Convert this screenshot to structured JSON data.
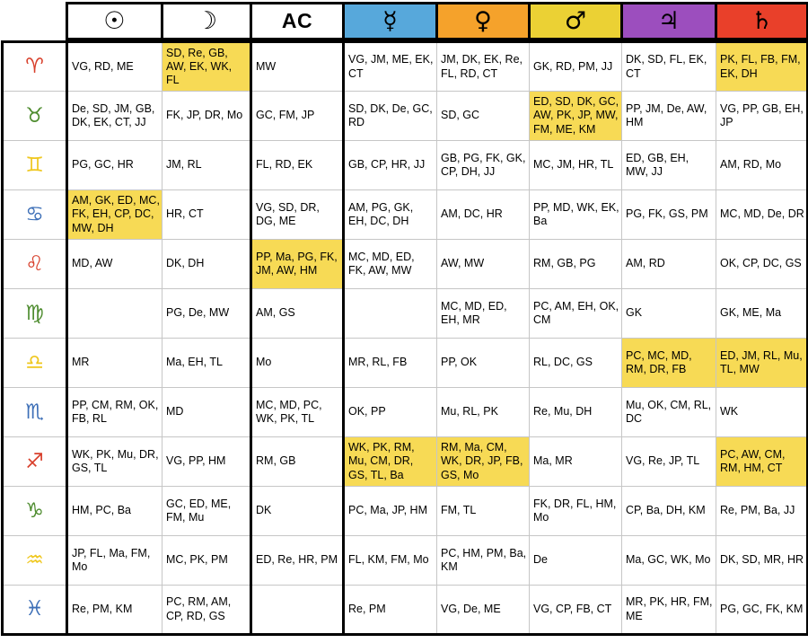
{
  "table": {
    "corner_label": "",
    "highlight_color": "#F7DA55",
    "element_colors": {
      "fire": "#D8402C",
      "earth": "#4E8C2F",
      "air": "#EFC71E",
      "water": "#3D6FB7"
    },
    "columns": [
      {
        "name": "sun",
        "label": "☉",
        "bg": "#ffffff",
        "text_header": false
      },
      {
        "name": "moon",
        "label": "☽",
        "bg": "#ffffff",
        "text_header": false
      },
      {
        "name": "ascendant",
        "label": "AC",
        "bg": "#ffffff",
        "text_header": true
      },
      {
        "name": "mercury",
        "label": "☿",
        "bg": "#57A8DB",
        "text_header": false
      },
      {
        "name": "venus",
        "label": "♀",
        "bg": "#F5A22B",
        "text_header": false
      },
      {
        "name": "mars",
        "label": "♂",
        "bg": "#EBD134",
        "text_header": false
      },
      {
        "name": "jupiter",
        "label": "♃",
        "bg": "#9C4EBE",
        "text_header": false
      },
      {
        "name": "saturn",
        "label": "♄",
        "bg": "#E9402A",
        "text_header": false
      }
    ],
    "rows": [
      {
        "sign": "aries",
        "symbol": "♈",
        "element": "fire",
        "cells": [
          {
            "text": "VG, RD, ME",
            "highlight": false
          },
          {
            "text": "SD, Re, GB, AW, EK, WK, FL",
            "highlight": true
          },
          {
            "text": "MW",
            "highlight": false
          },
          {
            "text": "VG, JM, ME, EK, CT",
            "highlight": false
          },
          {
            "text": "JM, DK, EK, Re, FL, RD, CT",
            "highlight": false
          },
          {
            "text": "GK, RD, PM, JJ",
            "highlight": false
          },
          {
            "text": "DK, SD, FL, EK, CT",
            "highlight": false
          },
          {
            "text": "PK, FL, FB, FM, EK, DH",
            "highlight": true
          }
        ]
      },
      {
        "sign": "taurus",
        "symbol": "♉",
        "element": "earth",
        "cells": [
          {
            "text": "De, SD, JM, GB, DK, EK, CT, JJ",
            "highlight": false
          },
          {
            "text": "FK, JP, DR, Mo",
            "highlight": false
          },
          {
            "text": "GC, FM, JP",
            "highlight": false
          },
          {
            "text": "SD, DK, De, GC, RD",
            "highlight": false
          },
          {
            "text": "SD, GC",
            "highlight": false
          },
          {
            "text": "ED, SD, DK, GC, AW, PK, JP, MW, FM, ME, KM",
            "highlight": true
          },
          {
            "text": "PP, JM, De, AW, HM",
            "highlight": false
          },
          {
            "text": "VG, PP, GB, EH, JP",
            "highlight": false
          }
        ]
      },
      {
        "sign": "gemini",
        "symbol": "♊",
        "element": "air",
        "cells": [
          {
            "text": "PG, GC, HR",
            "highlight": false
          },
          {
            "text": "JM, RL",
            "highlight": false
          },
          {
            "text": "FL, RD, EK",
            "highlight": false
          },
          {
            "text": "GB, CP, HR, JJ",
            "highlight": false
          },
          {
            "text": "GB, PG, FK, GK, CP, DH, JJ",
            "highlight": false
          },
          {
            "text": "MC, JM, HR, TL",
            "highlight": false
          },
          {
            "text": "ED, GB, EH, MW, JJ",
            "highlight": false
          },
          {
            "text": "AM, RD, Mo",
            "highlight": false
          }
        ]
      },
      {
        "sign": "cancer",
        "symbol": "♋",
        "element": "water",
        "cells": [
          {
            "text": "AM, GK, ED, MC, FK, EH, CP, DC, MW, DH",
            "highlight": true
          },
          {
            "text": "HR, CT",
            "highlight": false
          },
          {
            "text": "VG, SD, DR, DG, ME",
            "highlight": false
          },
          {
            "text": "AM, PG, GK, EH, DC, DH",
            "highlight": false
          },
          {
            "text": "AM, DC, HR",
            "highlight": false
          },
          {
            "text": "PP, MD, WK, EK, Ba",
            "highlight": false
          },
          {
            "text": "PG, FK, GS, PM",
            "highlight": false
          },
          {
            "text": "MC, MD, De, DR",
            "highlight": false
          }
        ]
      },
      {
        "sign": "leo",
        "symbol": "♌",
        "element": "fire",
        "cells": [
          {
            "text": "MD, AW",
            "highlight": false
          },
          {
            "text": "DK, DH",
            "highlight": false
          },
          {
            "text": "PP, Ma, PG, FK, JM, AW, HM",
            "highlight": true
          },
          {
            "text": "MC, MD, ED, FK, AW, MW",
            "highlight": false
          },
          {
            "text": "AW, MW",
            "highlight": false
          },
          {
            "text": "RM, GB, PG",
            "highlight": false
          },
          {
            "text": "AM, RD",
            "highlight": false
          },
          {
            "text": "OK, CP, DC, GS",
            "highlight": false
          }
        ]
      },
      {
        "sign": "virgo",
        "symbol": "♍",
        "element": "earth",
        "cells": [
          {
            "text": "",
            "highlight": false
          },
          {
            "text": "PG, De, MW",
            "highlight": false
          },
          {
            "text": "AM, GS",
            "highlight": false
          },
          {
            "text": "",
            "highlight": false
          },
          {
            "text": "MC, MD, ED, EH, MR",
            "highlight": false
          },
          {
            "text": "PC, AM, EH, OK, CM",
            "highlight": false
          },
          {
            "text": "GK",
            "highlight": false
          },
          {
            "text": "GK, ME, Ma",
            "highlight": false
          }
        ]
      },
      {
        "sign": "libra",
        "symbol": "♎",
        "element": "air",
        "cells": [
          {
            "text": "MR",
            "highlight": false
          },
          {
            "text": "Ma, EH, TL",
            "highlight": false
          },
          {
            "text": "Mo",
            "highlight": false
          },
          {
            "text": "MR, RL, FB",
            "highlight": false
          },
          {
            "text": "PP, OK",
            "highlight": false
          },
          {
            "text": "RL, DC, GS",
            "highlight": false
          },
          {
            "text": "PC, MC, MD, RM, DR, FB",
            "highlight": true
          },
          {
            "text": "ED, JM, RL, Mu, TL, MW",
            "highlight": true
          }
        ]
      },
      {
        "sign": "scorpio",
        "symbol": "♏",
        "element": "water",
        "cells": [
          {
            "text": "PP, CM, RM, OK, FB, RL",
            "highlight": false
          },
          {
            "text": "MD",
            "highlight": false
          },
          {
            "text": "MC, MD, PC, WK, PK, TL",
            "highlight": false
          },
          {
            "text": "OK, PP",
            "highlight": false
          },
          {
            "text": "Mu, RL, PK",
            "highlight": false
          },
          {
            "text": "Re, Mu, DH",
            "highlight": false
          },
          {
            "text": "Mu, OK, CM, RL, DC",
            "highlight": false
          },
          {
            "text": "WK",
            "highlight": false
          }
        ]
      },
      {
        "sign": "sagittarius",
        "symbol": "♐",
        "element": "fire",
        "cells": [
          {
            "text": "WK, PK, Mu, DR, GS, TL",
            "highlight": false
          },
          {
            "text": "VG, PP, HM",
            "highlight": false
          },
          {
            "text": "RM, GB",
            "highlight": false
          },
          {
            "text": "WK, PK, RM, Mu, CM, DR, GS, TL, Ba",
            "highlight": true
          },
          {
            "text": "RM, Ma, CM, WK, DR, JP, FB, GS, Mo",
            "highlight": true
          },
          {
            "text": "Ma, MR",
            "highlight": false
          },
          {
            "text": "VG, Re, JP, TL",
            "highlight": false
          },
          {
            "text": "PC, AW, CM, RM, HM, CT",
            "highlight": true
          }
        ]
      },
      {
        "sign": "capricorn",
        "symbol": "♑",
        "element": "earth",
        "cells": [
          {
            "text": "HM, PC, Ba",
            "highlight": false
          },
          {
            "text": "GC, ED, ME, FM, Mu",
            "highlight": false
          },
          {
            "text": "DK",
            "highlight": false
          },
          {
            "text": "PC, Ma, JP, HM",
            "highlight": false
          },
          {
            "text": "FM, TL",
            "highlight": false
          },
          {
            "text": "FK, DR, FL, HM, Mo",
            "highlight": false
          },
          {
            "text": "CP, Ba, DH, KM",
            "highlight": false
          },
          {
            "text": "Re, PM, Ba, JJ",
            "highlight": false
          }
        ]
      },
      {
        "sign": "aquarius",
        "symbol": "♒",
        "element": "air",
        "cells": [
          {
            "text": "JP, FL, Ma, FM, Mo",
            "highlight": false
          },
          {
            "text": "MC, PK, PM",
            "highlight": false
          },
          {
            "text": "ED, Re, HR, PM",
            "highlight": false
          },
          {
            "text": "FL, KM, FM, Mo",
            "highlight": false
          },
          {
            "text": "PC, HM, PM, Ba, KM",
            "highlight": false
          },
          {
            "text": "De",
            "highlight": false
          },
          {
            "text": "Ma, GC, WK, Mo",
            "highlight": false
          },
          {
            "text": "DK, SD, MR, HR",
            "highlight": false
          }
        ]
      },
      {
        "sign": "pisces",
        "symbol": "♓",
        "element": "water",
        "cells": [
          {
            "text": "Re, PM, KM",
            "highlight": false
          },
          {
            "text": "PC, RM, AM, CP, RD, GS",
            "highlight": false
          },
          {
            "text": "",
            "highlight": false
          },
          {
            "text": "Re, PM",
            "highlight": false
          },
          {
            "text": "VG, De, ME",
            "highlight": false
          },
          {
            "text": "VG, CP, FB, CT",
            "highlight": false
          },
          {
            "text": "MR, PK, HR, FM, ME",
            "highlight": false
          },
          {
            "text": "PG, GC, FK, KM",
            "highlight": false
          }
        ]
      }
    ]
  },
  "chart_data": {
    "type": "table",
    "title": "",
    "columns": [
      "",
      "Sun",
      "Moon",
      "AC",
      "Mercury",
      "Venus",
      "Mars",
      "Jupiter",
      "Saturn"
    ],
    "header_colors": [
      "#ffffff",
      "#ffffff",
      "#ffffff",
      "#ffffff",
      "#57A8DB",
      "#F5A22B",
      "#EBD134",
      "#9C4EBE",
      "#E9402A"
    ],
    "rows": [
      [
        "Aries",
        "VG, RD, ME",
        "SD, Re, GB, AW, EK, WK, FL",
        "MW",
        "VG, JM, ME, EK, CT",
        "JM, DK, EK, Re, FL, RD, CT",
        "GK, RD, PM, JJ",
        "DK, SD, FL, EK, CT",
        "PK, FL, FB, FM, EK, DH"
      ],
      [
        "Taurus",
        "De, SD, JM, GB, DK, EK, CT, JJ",
        "FK, JP, DR, Mo",
        "GC, FM, JP",
        "SD, DK, De, GC, RD",
        "SD, GC",
        "ED, SD, DK, GC, AW, PK, JP, MW, FM, ME, KM",
        "PP, JM, De, AW, HM",
        "VG, PP, GB, EH, JP"
      ],
      [
        "Gemini",
        "PG, GC, HR",
        "JM, RL",
        "FL, RD, EK",
        "GB, CP, HR, JJ",
        "GB, PG, FK, GK, CP, DH, JJ",
        "MC, JM, HR, TL",
        "ED, GB, EH, MW, JJ",
        "AM, RD, Mo"
      ],
      [
        "Cancer",
        "AM, GK, ED, MC, FK, EH, CP, DC, MW, DH",
        "HR, CT",
        "VG, SD, DR, DG, ME",
        "AM, PG, GK, EH, DC, DH",
        "AM, DC, HR",
        "PP, MD, WK, EK, Ba",
        "PG, FK, GS, PM",
        "MC, MD, De, DR"
      ],
      [
        "Leo",
        "MD, AW",
        "DK, DH",
        "PP, Ma, PG, FK, JM, AW, HM",
        "MC, MD, ED, FK, AW, MW",
        "AW, MW",
        "RM, GB, PG",
        "AM, RD",
        "OK, CP, DC, GS"
      ],
      [
        "Virgo",
        "",
        "PG, De, MW",
        "AM, GS",
        "",
        "MC, MD, ED, EH, MR",
        "PC, AM, EH, OK, CM",
        "GK",
        "GK, ME, Ma"
      ],
      [
        "Libra",
        "MR",
        "Ma, EH, TL",
        "Mo",
        "MR, RL, FB",
        "PP, OK",
        "RL, DC, GS",
        "PC, MC, MD, RM, DR, FB",
        "ED, JM, RL, Mu, TL, MW"
      ],
      [
        "Scorpio",
        "PP, CM, RM, OK, FB, RL",
        "MD",
        "MC, MD, PC, WK, PK, TL",
        "OK, PP",
        "Mu, RL, PK",
        "Re, Mu, DH",
        "Mu, OK, CM, RL, DC",
        "WK"
      ],
      [
        "Sagittarius",
        "WK, PK, Mu, DR, GS, TL",
        "VG, PP, HM",
        "RM, GB",
        "WK, PK, RM, Mu, CM, DR, GS, TL, Ba",
        "RM, Ma, CM, WK, DR, JP, FB, GS, Mo",
        "Ma, MR",
        "VG, Re, JP, TL",
        "PC, AW, CM, RM, HM, CT"
      ],
      [
        "Capricorn",
        "HM, PC, Ba",
        "GC, ED, ME, FM, Mu",
        "DK",
        "PC, Ma, JP, HM",
        "FM, TL",
        "FK, DR, FL, HM, Mo",
        "CP, Ba, DH, KM",
        "Re, PM, Ba, JJ"
      ],
      [
        "Aquarius",
        "JP, FL, Ma, FM, Mo",
        "MC, PK, PM",
        "ED, Re, HR, PM",
        "FL, KM, FM, Mo",
        "PC, HM, PM, Ba, KM",
        "De",
        "Ma, GC, WK, Mo",
        "DK, SD, MR, HR"
      ],
      [
        "Pisces",
        "Re, PM, KM",
        "PC, RM, AM, CP, RD, GS",
        "",
        "Re, PM",
        "VG, De, ME",
        "VG, CP, FB, CT",
        "MR, PK, HR, FM, ME",
        "PG, GC, FK, KM"
      ]
    ],
    "highlighted_cells": [
      [
        "Aries",
        "Moon"
      ],
      [
        "Aries",
        "Saturn"
      ],
      [
        "Taurus",
        "Mars"
      ],
      [
        "Cancer",
        "Sun"
      ],
      [
        "Leo",
        "AC"
      ],
      [
        "Libra",
        "Jupiter"
      ],
      [
        "Libra",
        "Saturn"
      ],
      [
        "Sagittarius",
        "Mercury"
      ],
      [
        "Sagittarius",
        "Venus"
      ],
      [
        "Sagittarius",
        "Saturn"
      ]
    ],
    "highlight_color": "#F7DA55"
  }
}
